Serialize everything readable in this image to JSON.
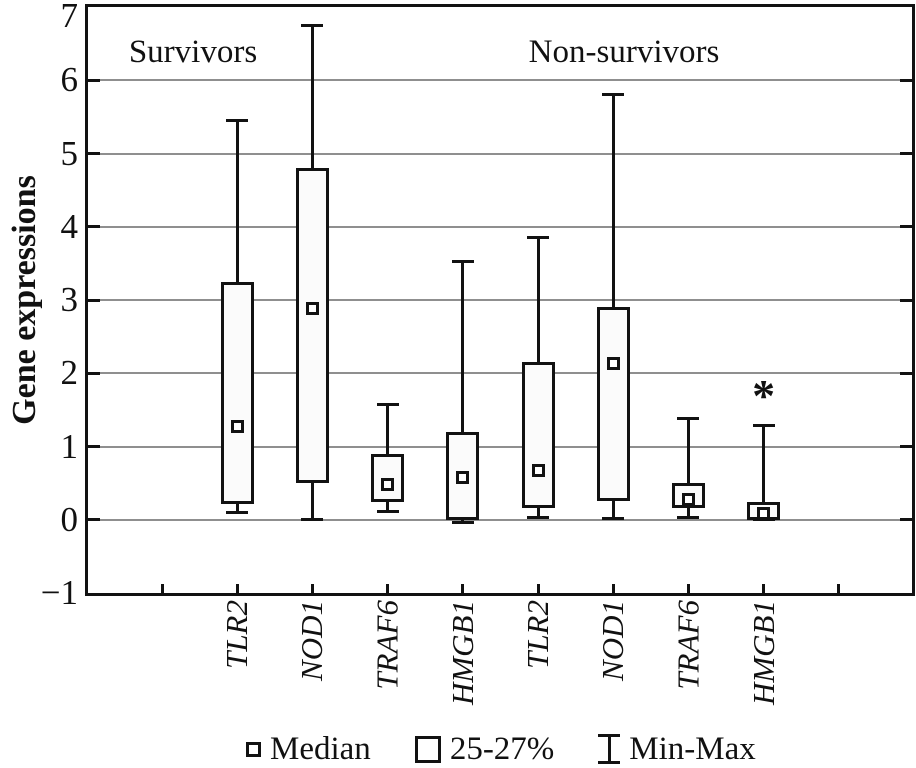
{
  "chart_data": {
    "type": "boxplot",
    "title": "",
    "ylabel": "Gene expressions",
    "xlabel": "",
    "ylim": [
      -1,
      7
    ],
    "y_tick_labels": [
      "7",
      "6",
      "5",
      "4",
      "3",
      "2",
      "1",
      "0",
      "−1"
    ],
    "y_tick_values": [
      7,
      6,
      5,
      4,
      3,
      2,
      1,
      0,
      -1
    ],
    "grid": "horizontal-gray",
    "group_labels": [
      "Survivors",
      "Non-survivors"
    ],
    "categories": [
      "TLR2",
      "NOD1",
      "TRAF6",
      "HMGB1",
      "TLR2",
      "NOD1",
      "TRAF6",
      "HMGB1"
    ],
    "series": [
      {
        "group": "Survivors",
        "gene": "TLR2",
        "min": 0.1,
        "q1": 0.22,
        "median": 1.27,
        "q3": 3.25,
        "max": 5.45,
        "annotation": ""
      },
      {
        "group": "Survivors",
        "gene": "NOD1",
        "min": 0.0,
        "q1": 0.5,
        "median": 2.88,
        "q3": 4.8,
        "max": 6.75,
        "annotation": ""
      },
      {
        "group": "Survivors",
        "gene": "TRAF6",
        "min": 0.11,
        "q1": 0.24,
        "median": 0.48,
        "q3": 0.9,
        "max": 1.58,
        "annotation": ""
      },
      {
        "group": "Survivors",
        "gene": "HMGB1",
        "min": -0.04,
        "q1": -0.01,
        "median": 0.58,
        "q3": 1.2,
        "max": 3.52,
        "annotation": ""
      },
      {
        "group": "Non-survivors",
        "gene": "TLR2",
        "min": 0.03,
        "q1": 0.16,
        "median": 0.67,
        "q3": 2.15,
        "max": 3.86,
        "annotation": ""
      },
      {
        "group": "Non-survivors",
        "gene": "NOD1",
        "min": 0.02,
        "q1": 0.26,
        "median": 2.13,
        "q3": 2.9,
        "max": 5.8,
        "annotation": ""
      },
      {
        "group": "Non-survivors",
        "gene": "TRAF6",
        "min": 0.03,
        "q1": 0.16,
        "median": 0.28,
        "q3": 0.5,
        "max": 1.38,
        "annotation": ""
      },
      {
        "group": "Non-survivors",
        "gene": "HMGB1",
        "min": 0.0,
        "q1": 0.0,
        "median": 0.09,
        "q3": 0.24,
        "max": 1.29,
        "annotation": "*"
      }
    ],
    "legend": [
      {
        "symbol": "small-square",
        "label": "Median"
      },
      {
        "symbol": "box",
        "label": "25-27%"
      },
      {
        "symbol": "whisker",
        "label": "Min-Max"
      }
    ],
    "colors": {
      "line": "#121212",
      "grid": "#8f8f8f",
      "box_fill": "#fbfbfb",
      "background": "#ffffff"
    }
  }
}
